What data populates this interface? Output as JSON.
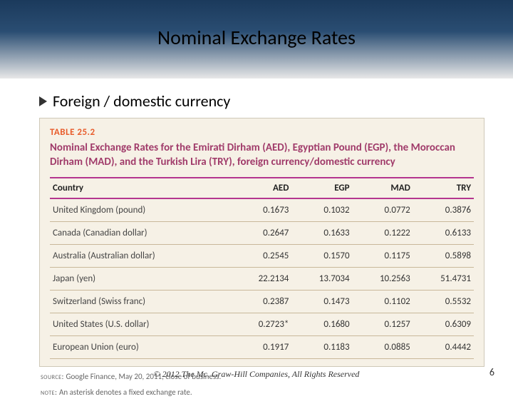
{
  "colors": {
    "header_top": "#1b3a5c",
    "header_mid": "#2a4d72",
    "header_bottom": "#e8e8e8",
    "table_bg": "#f6f1e6",
    "table_border": "#cfc8b8",
    "table_label": "#e85c2b",
    "table_title": "#a03b6a",
    "rule_color": "#b4368f",
    "row_rule": "#c9b89a"
  },
  "title": "Nominal Exchange Rates",
  "bullet": "Foreign / domestic currency",
  "table": {
    "label": "TABLE 25.2",
    "title": "Nominal Exchange Rates for the Emirati Dirham (AED), Egyptian Pound (EGP), the Moroccan Dirham (MAD), and the Turkish Lira (TRY), foreign currency/domestic currency",
    "columns": [
      "Country",
      "AED",
      "EGP",
      "MAD",
      "TRY"
    ],
    "rows": [
      [
        "United Kingdom (pound)",
        "0.1673",
        "0.1032",
        "0.0772",
        "0.3876"
      ],
      [
        "Canada (Canadian dollar)",
        "0.2647",
        "0.1633",
        "0.1222",
        "0.6133"
      ],
      [
        "Australia (Australian dollar)",
        "0.2545",
        "0.1570",
        "0.1175",
        "0.5898"
      ],
      [
        "Japan (yen)",
        "22.2134",
        "13.7034",
        "10.2563",
        "51.4731"
      ],
      [
        "Switzerland (Swiss franc)",
        "0.2387",
        "0.1473",
        "0.1102",
        "0.5532"
      ],
      [
        "United States (U.S. dollar)",
        "0.2723*",
        "0.1680",
        "0.1257",
        "0.6309"
      ],
      [
        "European Union (euro)",
        "0.1917",
        "0.1183",
        "0.0885",
        "0.4442"
      ]
    ],
    "source": "Google Finance, May 20, 2011, close of business.",
    "note": "An asterisk denotes a fixed exchange rate."
  },
  "footer": "© 2012 The Mc. Graw-Hill Companies, All Rights Reserved",
  "page_number": "6"
}
